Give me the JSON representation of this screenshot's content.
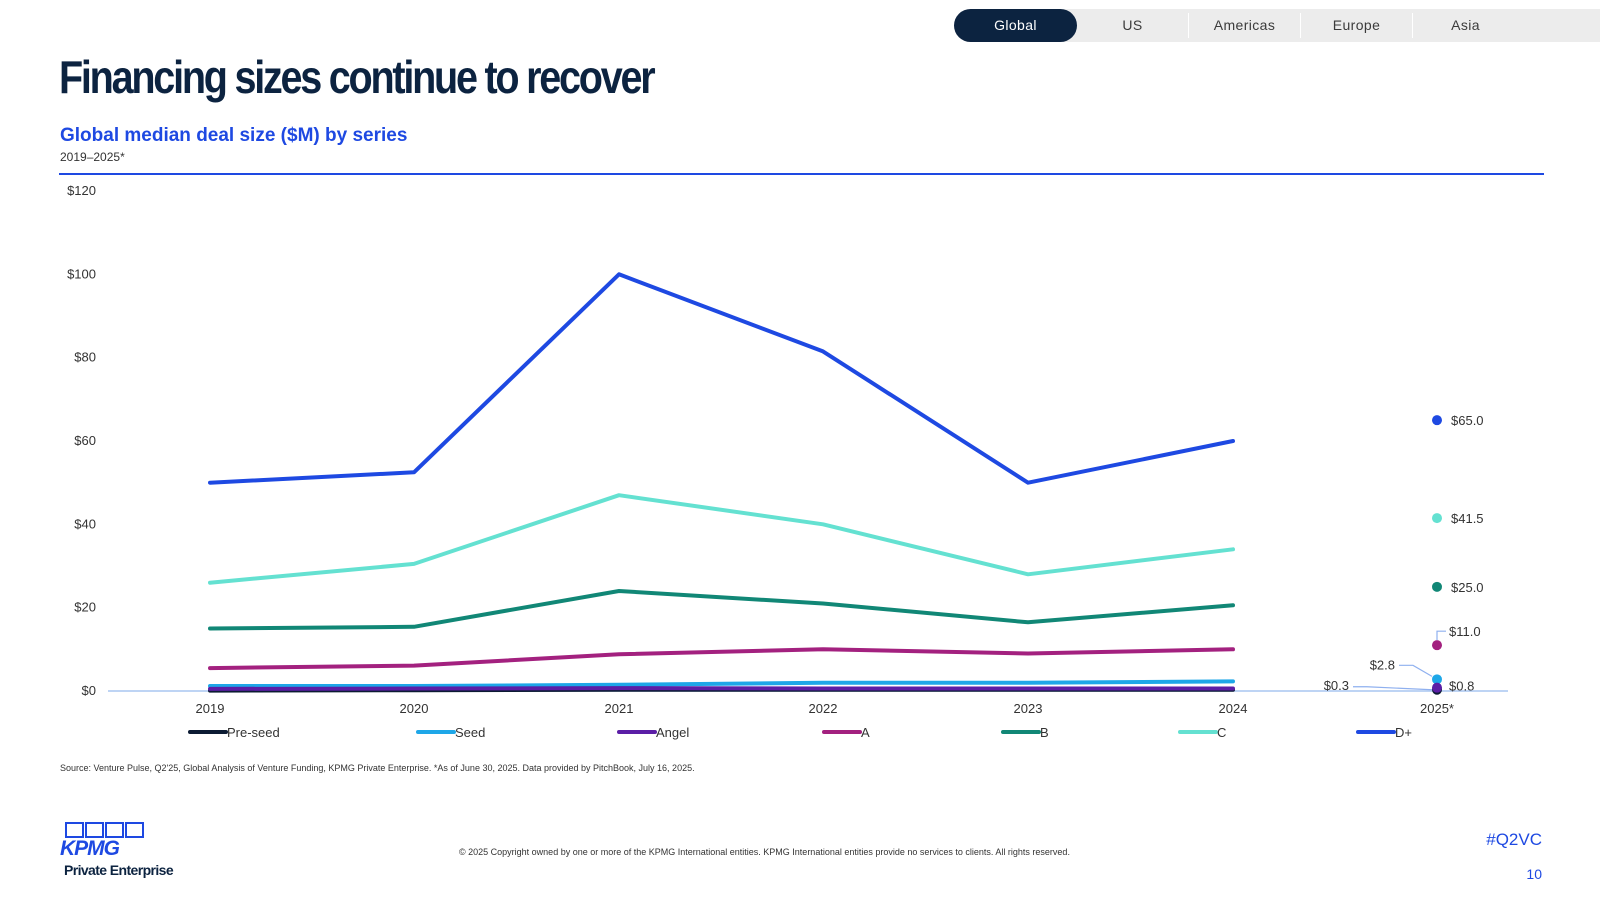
{
  "tabs": [
    {
      "label": "Global",
      "active": true
    },
    {
      "label": "US",
      "active": false
    },
    {
      "label": "Americas",
      "active": false
    },
    {
      "label": "Europe",
      "active": false
    },
    {
      "label": "Asia",
      "active": false
    }
  ],
  "page_title": "Financing sizes continue to recover",
  "footer": {
    "source": "Source: Venture Pulse, Q2'25, Global Analysis of Venture Funding, KPMG Private Enterprise. *As of June 30, 2025. Data provided by PitchBook, July 16, 2025.",
    "copyright": "© 2025 Copyright owned by one or more of the KPMG International entities. KPMG International entities provide no services to clients. All rights reserved.",
    "hashtag": "#Q2VC",
    "page_number": "10"
  },
  "logo": {
    "word": "KPMG",
    "sub": "Private Enterprise"
  },
  "colors": {
    "brand_blue": "#1e49e2",
    "navy": "#0c2340",
    "axis_line": "#a9c6f0"
  },
  "chart_data": {
    "type": "line",
    "title": "Global median deal size ($M) by series",
    "subtitle": "2019–2025*",
    "categories": [
      "2019",
      "2020",
      "2021",
      "2022",
      "2023",
      "2024",
      "2025*"
    ],
    "y_ticks": [
      "$0",
      "$20",
      "$40",
      "$60",
      "$80",
      "$100",
      "$120"
    ],
    "ylim": [
      0,
      120
    ],
    "grid": false,
    "legend_position": "bottom",
    "series": [
      {
        "name": "Pre-seed",
        "color": "#0c1b33",
        "values": [
          0.1,
          0.2,
          0.3,
          0.3,
          0.3,
          0.3,
          0.3
        ]
      },
      {
        "name": "Seed",
        "color": "#1ea7e8",
        "values": [
          1.2,
          1.2,
          1.5,
          2.0,
          2.0,
          2.3,
          2.8
        ]
      },
      {
        "name": "Angel",
        "color": "#5b1ea6",
        "values": [
          0.5,
          0.6,
          0.7,
          0.6,
          0.6,
          0.6,
          0.8
        ]
      },
      {
        "name": "A",
        "color": "#a3217f",
        "values": [
          5.5,
          6.1,
          8.8,
          10.0,
          9.0,
          10.0,
          11.0
        ]
      },
      {
        "name": "B",
        "color": "#118776",
        "values": [
          15.0,
          15.4,
          24.0,
          21.0,
          16.5,
          20.6,
          25.0
        ]
      },
      {
        "name": "C",
        "color": "#64e1d1",
        "values": [
          26.0,
          30.5,
          47.0,
          40.0,
          28.0,
          34.0,
          41.5
        ]
      },
      {
        "name": "D+",
        "color": "#1e49e2",
        "values": [
          50.0,
          52.5,
          100.0,
          81.5,
          50.0,
          60.0,
          65.0
        ]
      }
    ],
    "last_point_labels": [
      {
        "series": "D+",
        "text": "$65.0"
      },
      {
        "series": "C",
        "text": "$41.5"
      },
      {
        "series": "B",
        "text": "$25.0"
      },
      {
        "series": "A",
        "text": "$11.0"
      },
      {
        "series": "Seed",
        "text": "$2.8"
      },
      {
        "series": "Angel",
        "text": "$0.8"
      },
      {
        "series": "Pre-seed",
        "text": "$0.3"
      }
    ]
  }
}
